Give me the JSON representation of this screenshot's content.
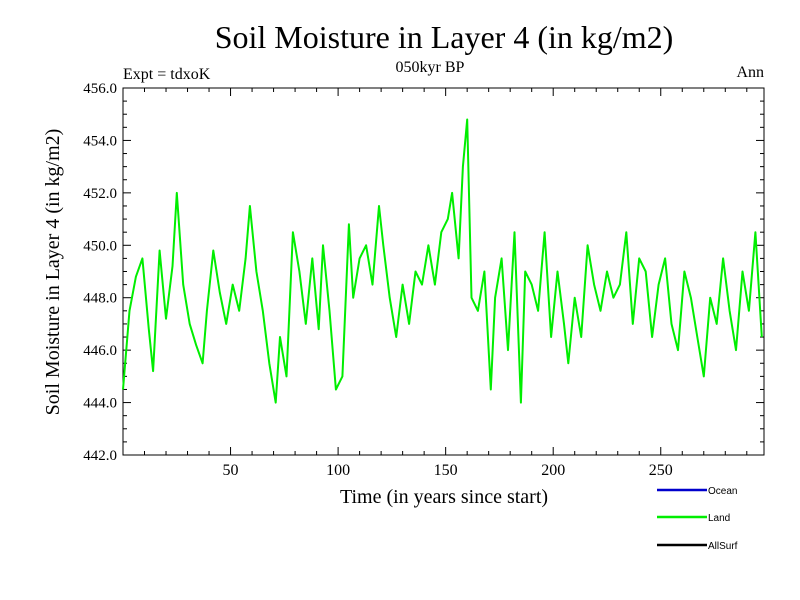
{
  "chart_data": {
    "type": "line",
    "title": "Soil Moisture in Layer 4 (in kg/m2)",
    "subtitle": "050kyr BP",
    "left_label": "Expt = tdxoK",
    "right_label": "Ann",
    "xlabel": "Time (in years since start)",
    "ylabel": "Soil Moisture in Layer 4 (in kg/m2)",
    "xlim": [
      0,
      298
    ],
    "ylim": [
      442,
      456
    ],
    "xticks": [
      50,
      100,
      150,
      200,
      250
    ],
    "xtick_labels": [
      "50",
      "100",
      "150",
      "200",
      "250"
    ],
    "yticks": [
      442,
      444,
      446,
      448,
      450,
      452,
      454,
      456
    ],
    "ytick_labels": [
      "442.0",
      "444.0",
      "446.0",
      "448.0",
      "450.0",
      "452.0",
      "454.0",
      "456.0"
    ],
    "grid": false,
    "legend_position": "bottom-right",
    "legend": [
      {
        "name": "Ocean",
        "color": "#0000cc"
      },
      {
        "name": "Land",
        "color": "#00ee00"
      },
      {
        "name": "AllSurf",
        "color": "#000000"
      }
    ],
    "series": [
      {
        "name": "Land",
        "color": "#00ee00",
        "x": [
          0,
          3,
          6,
          9,
          12,
          14,
          17,
          20,
          23,
          25,
          28,
          31,
          34,
          37,
          39,
          42,
          45,
          48,
          51,
          54,
          57,
          59,
          62,
          65,
          68,
          71,
          73,
          76,
          79,
          82,
          85,
          88,
          91,
          93,
          96,
          99,
          102,
          105,
          107,
          110,
          113,
          116,
          119,
          121,
          124,
          127,
          130,
          133,
          136,
          139,
          142,
          145,
          148,
          151,
          153,
          156,
          158,
          160,
          162,
          165,
          168,
          171,
          173,
          176,
          179,
          182,
          185,
          187,
          190,
          193,
          196,
          199,
          202,
          205,
          207,
          210,
          213,
          216,
          219,
          222,
          225,
          228,
          231,
          234,
          237,
          240,
          243,
          246,
          249,
          252,
          255,
          258,
          261,
          264,
          267,
          270,
          273,
          276,
          279,
          282,
          285,
          288,
          291,
          294,
          297
        ],
        "values": [
          444.5,
          447.5,
          448.8,
          449.5,
          446.8,
          445.2,
          449.8,
          447.2,
          449.2,
          452.0,
          448.5,
          447.0,
          446.2,
          445.5,
          447.5,
          449.8,
          448.2,
          447.0,
          448.5,
          447.5,
          449.5,
          451.5,
          449.0,
          447.5,
          445.5,
          444.0,
          446.5,
          445.0,
          450.5,
          449.0,
          447.0,
          449.5,
          446.8,
          450.0,
          447.5,
          444.5,
          445.0,
          450.8,
          448.0,
          449.5,
          450.0,
          448.5,
          451.5,
          450.0,
          448.0,
          446.5,
          448.5,
          447.0,
          449.0,
          448.5,
          450.0,
          448.5,
          450.5,
          451.0,
          452.0,
          449.5,
          453.0,
          454.8,
          448.0,
          447.5,
          449.0,
          444.5,
          448.0,
          449.5,
          446.0,
          450.5,
          444.0,
          449.0,
          448.5,
          447.5,
          450.5,
          446.5,
          449.0,
          447.0,
          445.5,
          448.0,
          446.5,
          450.0,
          448.5,
          447.5,
          449.0,
          448.0,
          448.5,
          450.5,
          447.0,
          449.5,
          449.0,
          446.5,
          448.5,
          449.5,
          447.0,
          446.0,
          449.0,
          448.0,
          446.5,
          445.0,
          448.0,
          447.0,
          449.5,
          447.5,
          446.0,
          449.0,
          447.5,
          450.5,
          446.5
        ]
      }
    ]
  }
}
